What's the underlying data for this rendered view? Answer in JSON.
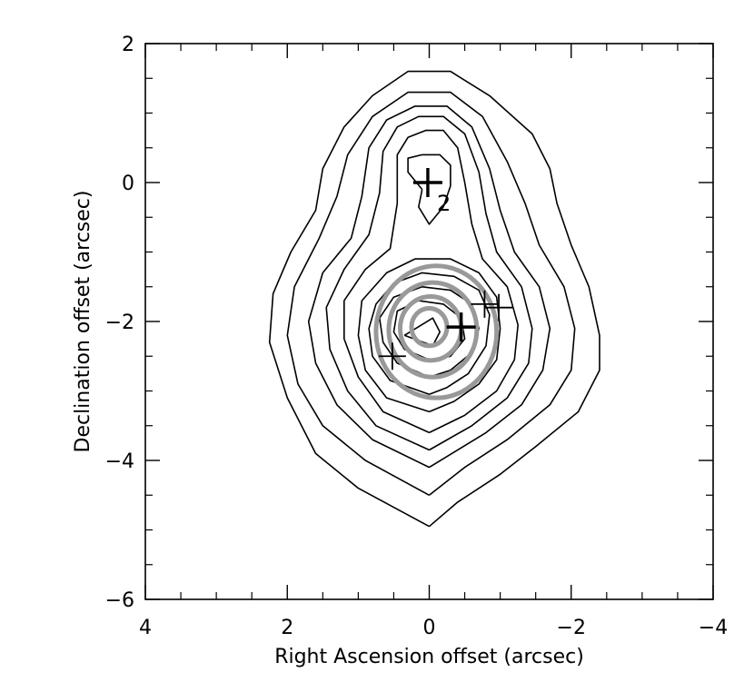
{
  "chart_data": {
    "type": "contour",
    "xlabel": "Right Ascension offset (arcsec)",
    "ylabel": "Declination offset (arcsec)",
    "xlim": [
      4,
      -4
    ],
    "ylim": [
      -6,
      2
    ],
    "x_ticks": [
      4,
      2,
      0,
      -2,
      -4
    ],
    "y_ticks": [
      2,
      0,
      -2,
      -4,
      -6
    ],
    "x_tick_labels": [
      "4",
      "2",
      "0",
      "−2",
      "−4"
    ],
    "y_tick_labels": [
      "2",
      "0",
      "−2",
      "−4",
      "−6"
    ],
    "grid": false,
    "colors": {
      "contours": "#000000",
      "overlay_contours": "#999999",
      "markers": "#000000"
    },
    "contours": [
      [
        [
          0,
          -4.95
        ],
        [
          1.0,
          -4.4
        ],
        [
          1.6,
          -3.9
        ],
        [
          2.0,
          -3.1
        ],
        [
          2.25,
          -2.3
        ],
        [
          2.2,
          -1.6
        ],
        [
          1.95,
          -1.0
        ],
        [
          1.6,
          -0.4
        ],
        [
          1.5,
          0.2
        ],
        [
          1.2,
          0.8
        ],
        [
          0.8,
          1.25
        ],
        [
          0.3,
          1.6
        ],
        [
          -0.3,
          1.6
        ],
        [
          -0.85,
          1.25
        ],
        [
          -1.45,
          0.7
        ],
        [
          -1.7,
          0.2
        ],
        [
          -1.8,
          -0.3
        ],
        [
          -2.0,
          -0.9
        ],
        [
          -2.25,
          -1.5
        ],
        [
          -2.4,
          -2.2
        ],
        [
          -2.4,
          -2.7
        ],
        [
          -2.1,
          -3.3
        ],
        [
          -1.5,
          -3.8
        ],
        [
          -1.0,
          -4.2
        ],
        [
          -0.4,
          -4.6
        ],
        [
          0,
          -4.95
        ]
      ],
      [
        [
          0,
          -4.5
        ],
        [
          0.9,
          -4.0
        ],
        [
          1.5,
          -3.5
        ],
        [
          1.85,
          -2.9
        ],
        [
          2.0,
          -2.2
        ],
        [
          1.9,
          -1.5
        ],
        [
          1.55,
          -0.8
        ],
        [
          1.3,
          -0.2
        ],
        [
          1.15,
          0.4
        ],
        [
          0.8,
          0.95
        ],
        [
          0.3,
          1.3
        ],
        [
          -0.3,
          1.3
        ],
        [
          -0.75,
          0.95
        ],
        [
          -1.1,
          0.3
        ],
        [
          -1.35,
          -0.3
        ],
        [
          -1.55,
          -0.9
        ],
        [
          -1.9,
          -1.5
        ],
        [
          -2.05,
          -2.1
        ],
        [
          -2.0,
          -2.7
        ],
        [
          -1.7,
          -3.2
        ],
        [
          -1.1,
          -3.7
        ],
        [
          -0.5,
          -4.1
        ],
        [
          0,
          -4.5
        ]
      ],
      [
        [
          0,
          -4.1
        ],
        [
          0.8,
          -3.7
        ],
        [
          1.3,
          -3.2
        ],
        [
          1.6,
          -2.6
        ],
        [
          1.7,
          -2.0
        ],
        [
          1.5,
          -1.3
        ],
        [
          1.1,
          -0.8
        ],
        [
          0.95,
          -0.2
        ],
        [
          0.85,
          0.5
        ],
        [
          0.6,
          0.9
        ],
        [
          0.2,
          1.1
        ],
        [
          -0.25,
          1.1
        ],
        [
          -0.6,
          0.8
        ],
        [
          -0.85,
          0.2
        ],
        [
          -1.0,
          -0.4
        ],
        [
          -1.2,
          -1.0
        ],
        [
          -1.55,
          -1.5
        ],
        [
          -1.7,
          -2.1
        ],
        [
          -1.6,
          -2.7
        ],
        [
          -1.3,
          -3.2
        ],
        [
          -0.8,
          -3.6
        ],
        [
          0,
          -4.1
        ]
      ],
      [
        [
          0,
          -3.85
        ],
        [
          0.75,
          -3.5
        ],
        [
          1.15,
          -3.0
        ],
        [
          1.4,
          -2.4
        ],
        [
          1.45,
          -1.8
        ],
        [
          1.2,
          -1.25
        ],
        [
          0.85,
          -0.75
        ],
        [
          0.7,
          -0.15
        ],
        [
          0.65,
          0.45
        ],
        [
          0.45,
          0.8
        ],
        [
          0.15,
          0.95
        ],
        [
          -0.2,
          0.95
        ],
        [
          -0.5,
          0.7
        ],
        [
          -0.7,
          0.15
        ],
        [
          -0.8,
          -0.45
        ],
        [
          -0.95,
          -1.0
        ],
        [
          -1.3,
          -1.5
        ],
        [
          -1.45,
          -2.1
        ],
        [
          -1.4,
          -2.6
        ],
        [
          -1.1,
          -3.1
        ],
        [
          -0.6,
          -3.5
        ],
        [
          0,
          -3.85
        ]
      ],
      [
        [
          0,
          -3.6
        ],
        [
          0.65,
          -3.3
        ],
        [
          1.0,
          -2.8
        ],
        [
          1.2,
          -2.25
        ],
        [
          1.2,
          -1.7
        ],
        [
          0.9,
          -1.25
        ],
        [
          0.55,
          -0.95
        ],
        [
          0.45,
          -0.3
        ],
        [
          0.45,
          0.4
        ],
        [
          0.3,
          0.65
        ],
        [
          0.05,
          0.75
        ],
        [
          -0.2,
          0.75
        ],
        [
          -0.4,
          0.5
        ],
        [
          -0.5,
          0.0
        ],
        [
          -0.6,
          -0.6
        ],
        [
          -0.75,
          -1.1
        ],
        [
          -1.1,
          -1.5
        ],
        [
          -1.25,
          -2.05
        ],
        [
          -1.2,
          -2.55
        ],
        [
          -0.95,
          -3.0
        ],
        [
          -0.5,
          -3.35
        ],
        [
          0,
          -3.6
        ]
      ],
      [
        [
          0.1,
          -0.1
        ],
        [
          0.3,
          0.15
        ],
        [
          0.3,
          0.35
        ],
        [
          0.1,
          0.4
        ],
        [
          -0.15,
          0.4
        ],
        [
          -0.3,
          0.25
        ],
        [
          -0.3,
          -0.05
        ],
        [
          -0.2,
          -0.35
        ],
        [
          0,
          -0.6
        ],
        [
          0.15,
          -0.35
        ],
        [
          0.1,
          -0.1
        ]
      ],
      [
        [
          0,
          -3.3
        ],
        [
          0.6,
          -3.1
        ],
        [
          0.9,
          -2.7
        ],
        [
          1.0,
          -2.2
        ],
        [
          0.95,
          -1.7
        ],
        [
          0.6,
          -1.3
        ],
        [
          0.2,
          -1.1
        ],
        [
          -0.3,
          -1.1
        ],
        [
          -0.7,
          -1.3
        ],
        [
          -0.95,
          -1.65
        ],
        [
          -1.0,
          -2.1
        ],
        [
          -0.95,
          -2.55
        ],
        [
          -0.7,
          -2.9
        ],
        [
          -0.35,
          -3.15
        ],
        [
          0,
          -3.3
        ]
      ],
      [
        [
          0,
          -3.05
        ],
        [
          0.55,
          -2.85
        ],
        [
          0.8,
          -2.5
        ],
        [
          0.85,
          -2.1
        ],
        [
          0.75,
          -1.75
        ],
        [
          0.5,
          -1.45
        ],
        [
          0.1,
          -1.3
        ],
        [
          -0.35,
          -1.35
        ],
        [
          -0.7,
          -1.55
        ],
        [
          -0.85,
          -1.9
        ],
        [
          -0.8,
          -2.35
        ],
        [
          -0.55,
          -2.75
        ],
        [
          -0.25,
          -2.95
        ],
        [
          0,
          -3.05
        ]
      ],
      [
        [
          0,
          -2.8
        ],
        [
          0.45,
          -2.6
        ],
        [
          0.65,
          -2.3
        ],
        [
          0.7,
          -1.95
        ],
        [
          0.5,
          -1.65
        ],
        [
          0.1,
          -1.5
        ],
        [
          -0.3,
          -1.55
        ],
        [
          -0.6,
          -1.75
        ],
        [
          -0.7,
          -2.1
        ],
        [
          -0.6,
          -2.45
        ],
        [
          -0.3,
          -2.7
        ],
        [
          0,
          -2.8
        ]
      ],
      [
        [
          0,
          -2.55
        ],
        [
          0.35,
          -2.4
        ],
        [
          0.5,
          -2.15
        ],
        [
          0.45,
          -1.85
        ],
        [
          0.15,
          -1.7
        ],
        [
          -0.2,
          -1.75
        ],
        [
          -0.45,
          -1.95
        ],
        [
          -0.5,
          -2.25
        ],
        [
          -0.3,
          -2.5
        ],
        [
          0,
          -2.55
        ]
      ],
      [
        [
          0.35,
          -2.2
        ],
        [
          -0.05,
          -1.95
        ],
        [
          -0.15,
          -2.15
        ],
        [
          -0.05,
          -2.35
        ],
        [
          0.35,
          -2.2
        ]
      ]
    ],
    "overlay_contours": [
      {
        "cx": -0.1,
        "cy": -2.15,
        "rx": 0.85,
        "ry": 0.95
      },
      {
        "cx": -0.05,
        "cy": -2.12,
        "rx": 0.62,
        "ry": 0.68
      },
      {
        "cx": -0.02,
        "cy": -2.1,
        "rx": 0.43,
        "ry": 0.46
      },
      {
        "cx": 0.0,
        "cy": -2.08,
        "rx": 0.25,
        "ry": 0.27
      }
    ],
    "markers": [
      {
        "x": 0.02,
        "y": 0.0,
        "label": "2",
        "bold": true
      },
      {
        "x": 0.52,
        "y": -2.5,
        "label": "",
        "bold": false
      },
      {
        "x": -0.45,
        "y": -2.08,
        "label": "",
        "bold": true
      },
      {
        "x": -0.78,
        "y": -1.75,
        "label": "",
        "bold": false
      },
      {
        "x": -0.98,
        "y": -1.8,
        "label": "",
        "bold": false
      }
    ]
  }
}
